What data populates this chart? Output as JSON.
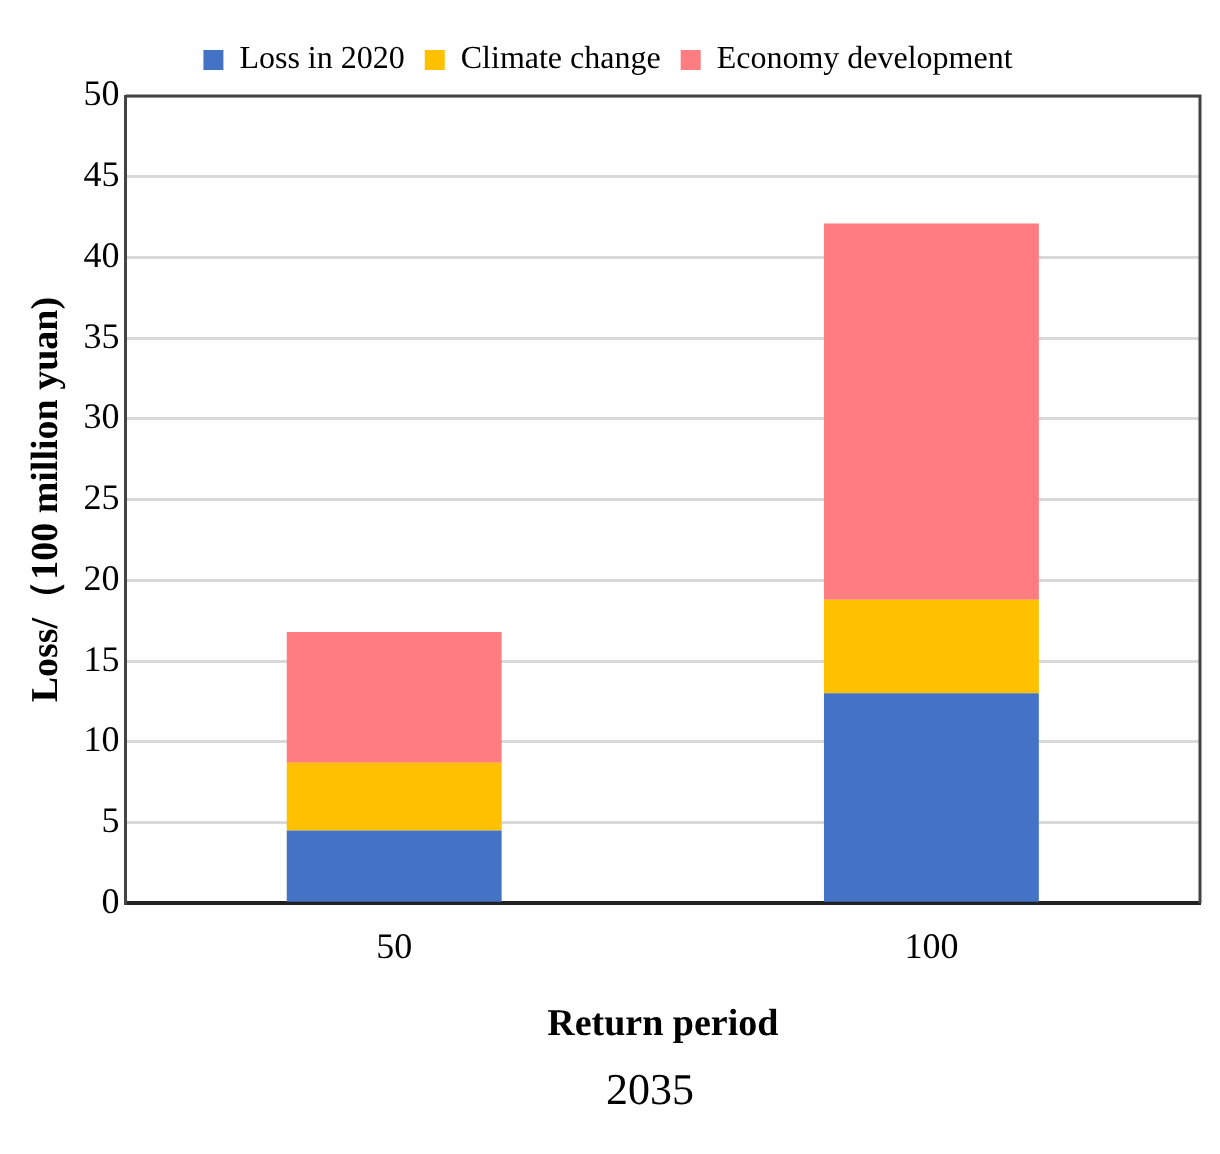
{
  "chart_data": {
    "type": "bar",
    "stacked": true,
    "xlabel": "Return period",
    "ylabel": "Loss/（100 million yuan)",
    "categories": [
      "50",
      "100"
    ],
    "series": [
      {
        "name": "Loss in 2020",
        "color": "#4472c4",
        "values": [
          4.5,
          13.0
        ]
      },
      {
        "name": "Climate change",
        "color": "#ffc000",
        "values": [
          4.2,
          5.8
        ]
      },
      {
        "name": "Economy development",
        "color": "#ff7c80",
        "values": [
          8.1,
          23.3
        ]
      }
    ],
    "ylim": [
      0,
      50
    ],
    "yticks": [
      0,
      5,
      10,
      15,
      20,
      25,
      30,
      35,
      40,
      45,
      50
    ],
    "grid": "y",
    "legend": "top",
    "annotations": [
      "2035"
    ]
  }
}
